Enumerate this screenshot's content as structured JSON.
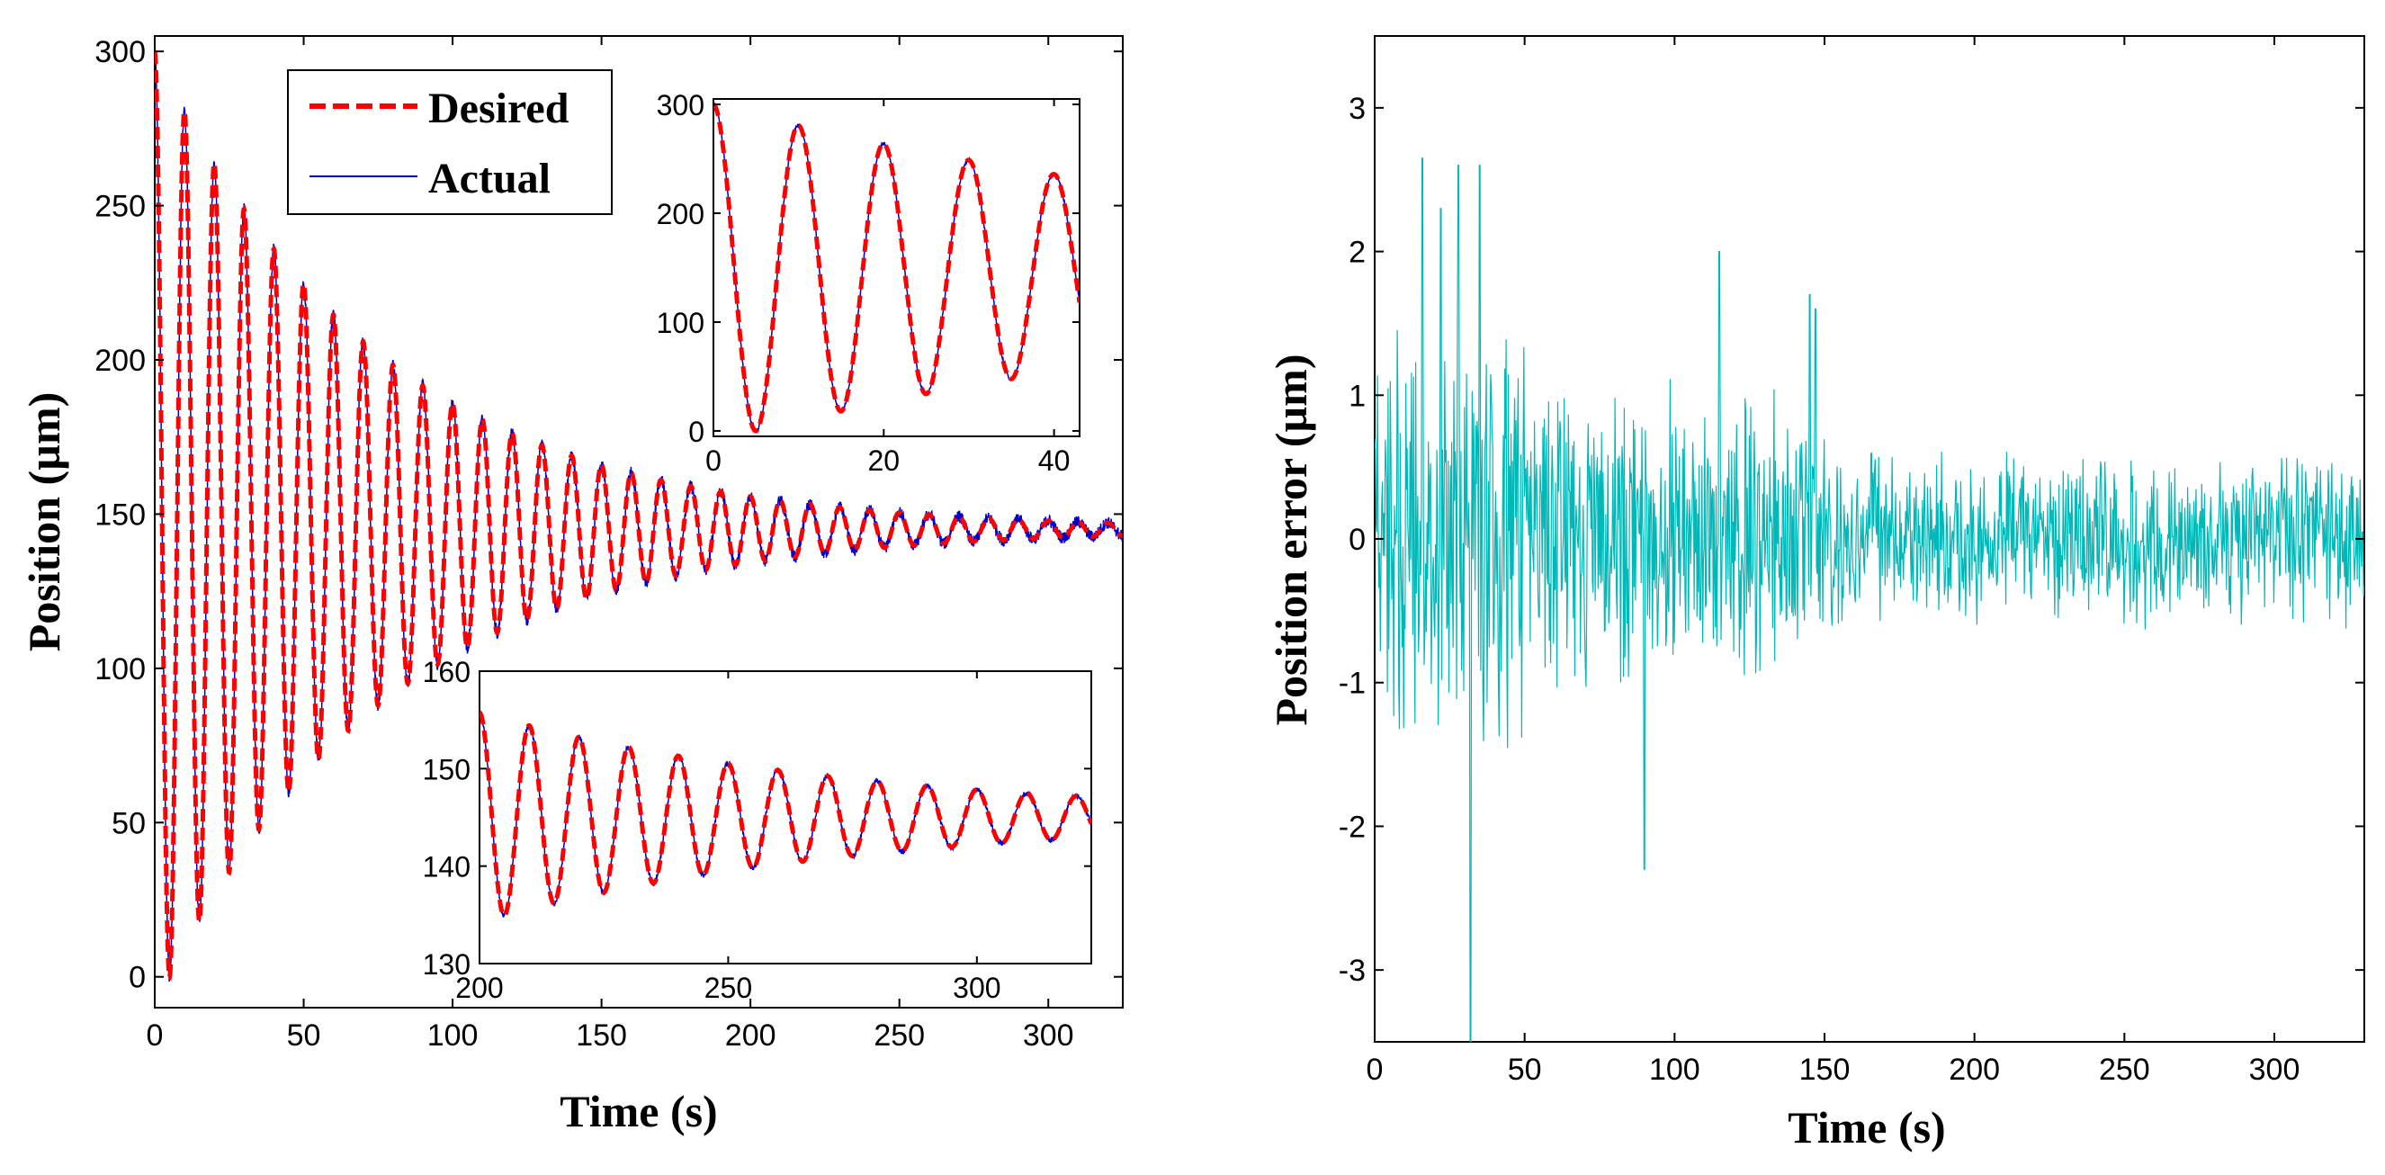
{
  "chart_data": [
    {
      "type": "line",
      "title": "",
      "xlabel": "Time (s)",
      "ylabel": "Position (µm)",
      "xlim": [
        0,
        325
      ],
      "ylim": [
        -10,
        305
      ],
      "xticks": [
        0,
        50,
        100,
        150,
        200,
        250,
        300
      ],
      "yticks": [
        0,
        50,
        100,
        150,
        200,
        250,
        300
      ],
      "legend": {
        "position": "top-left",
        "entries": [
          "Desired",
          "Actual"
        ]
      },
      "series": [
        {
          "name": "Desired",
          "color": "#ff0000",
          "style": "dashed",
          "model": {
            "offset": 145,
            "amplitude": 155,
            "decay_time_s": 75,
            "period_s": 10,
            "phase": "cosine",
            "duration_s": 325
          }
        },
        {
          "name": "Actual",
          "color": "#0000cc",
          "style": "solid",
          "model": {
            "offset": 145,
            "amplitude": 155,
            "decay_time_s": 75,
            "period_s": 10,
            "phase": "cosine",
            "duration_s": 325
          }
        }
      ],
      "insets": [
        {
          "location": "top-right",
          "xlim": [
            0,
            43
          ],
          "ylim": [
            -5,
            305
          ],
          "xticks": [
            0,
            20,
            40
          ],
          "yticks": [
            0,
            100,
            200,
            300
          ]
        },
        {
          "location": "bottom-right",
          "xlim": [
            200,
            323
          ],
          "ylim": [
            130,
            160
          ],
          "xticks": [
            200,
            250,
            300
          ],
          "yticks": [
            130,
            140,
            150,
            160
          ]
        }
      ]
    },
    {
      "type": "line",
      "title": "",
      "xlabel": "Time (s)",
      "ylabel": "Position error (µm)",
      "xlim": [
        0,
        330
      ],
      "ylim": [
        -3.5,
        3.5
      ],
      "xticks": [
        0,
        50,
        100,
        150,
        200,
        250,
        300
      ],
      "yticks": [
        -3,
        -2,
        -1,
        0,
        1,
        2,
        3
      ],
      "series": [
        {
          "name": "Position error",
          "color": "#00b8b8",
          "style": "solid",
          "model": {
            "kind": "noisy_oscillation",
            "duration_s": 330,
            "envelope_um": 1.0,
            "peaks": [
              [
                16,
                2.65
              ],
              [
                22,
                2.3
              ],
              [
                28,
                2.6
              ],
              [
                32,
                -3.5
              ],
              [
                35,
                2.6
              ],
              [
                90,
                -2.3
              ],
              [
                115,
                2.0
              ],
              [
                145,
                1.7
              ],
              [
                147,
                1.6
              ]
            ]
          }
        }
      ]
    }
  ]
}
